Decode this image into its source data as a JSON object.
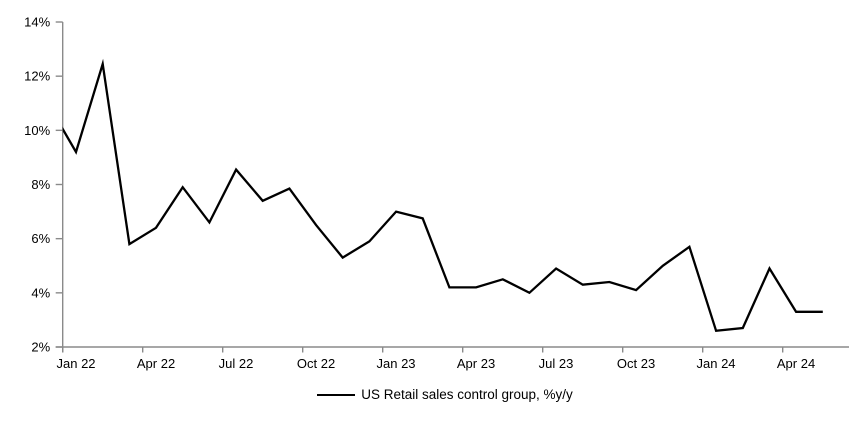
{
  "chart_data": {
    "type": "line",
    "title": "",
    "legend": "US Retail sales control group, %y/y",
    "x": [
      "Dec-21",
      "Jan-22",
      "Feb-22",
      "Mar-22",
      "Apr-22",
      "May-22",
      "Jun-22",
      "Jul-22",
      "Aug-22",
      "Sep-22",
      "Oct-22",
      "Nov-22",
      "Dec-22",
      "Jan-23",
      "Feb-23",
      "Mar-23",
      "Apr-23",
      "May-23",
      "Jun-23",
      "Jul-23",
      "Aug-23",
      "Sep-23",
      "Oct-23",
      "Nov-23",
      "Dec-23",
      "Jan-24",
      "Feb-24",
      "Mar-24",
      "Apr-24",
      "May-24"
    ],
    "series": [
      {
        "name": "US Retail sales control group, %y/y",
        "values": [
          10.9,
          9.2,
          12.45,
          5.8,
          6.4,
          7.9,
          6.6,
          8.55,
          7.4,
          7.85,
          6.5,
          5.3,
          5.9,
          7.0,
          6.75,
          4.2,
          4.2,
          4.5,
          4.0,
          4.9,
          4.3,
          4.4,
          4.1,
          5.0,
          5.7,
          2.6,
          2.7,
          4.9,
          3.3,
          3.3
        ]
      }
    ],
    "x_tick_labels": [
      "Jan 22",
      "Apr 22",
      "Jul 22",
      "Oct 22",
      "Jan 23",
      "Apr 23",
      "Jul 23",
      "Oct 23",
      "Jan 24",
      "Apr 24"
    ],
    "y_tick_labels": [
      "2%",
      "4%",
      "6%",
      "8%",
      "10%",
      "12%",
      "14%"
    ],
    "ylim": [
      2,
      14
    ],
    "y_tick_step": 2,
    "grid": false,
    "legend_position": "bottom-center",
    "colors": {
      "line": "#000000",
      "axis": "#8a8a8a",
      "text": "#000000",
      "background": "#ffffff"
    }
  }
}
